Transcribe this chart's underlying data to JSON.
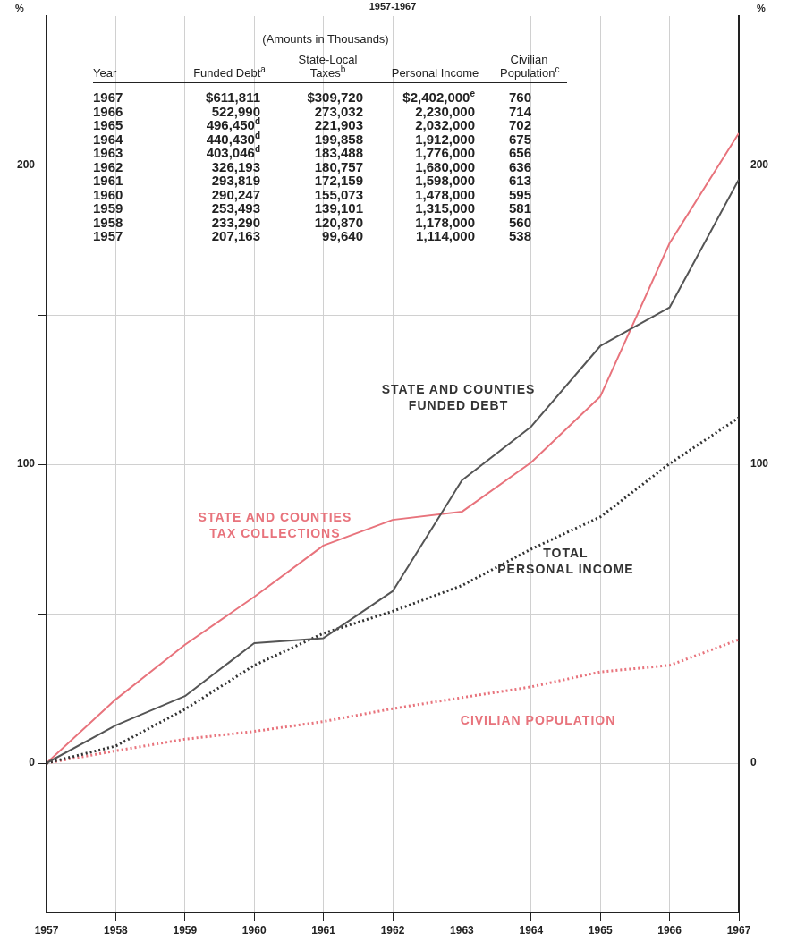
{
  "chart_data": {
    "type": "line",
    "title": "1957-1967",
    "ylabel": "%",
    "y2label": "%",
    "x": [
      1957,
      1958,
      1959,
      1960,
      1961,
      1962,
      1963,
      1964,
      1965,
      1966,
      1967
    ],
    "xlim": [
      1957,
      1967
    ],
    "xticks": [
      1957,
      1958,
      1959,
      1960,
      1961,
      1962,
      1963,
      1964,
      1965,
      1966,
      1967
    ],
    "ylim": [
      -50,
      250
    ],
    "yticks": [
      0,
      {
        "value": 50,
        "label": null
      },
      100,
      {
        "value": 150,
        "label": null
      },
      200
    ],
    "y2lim": [
      -50,
      250
    ],
    "y2ticks": [
      0,
      100,
      200
    ],
    "grid": true,
    "legend": false,
    "marker": "none",
    "series": [
      {
        "name": "STATE AND COUNTIES FUNDED DEBT",
        "color": "#555555",
        "line_style": "solid",
        "values": [
          0,
          12.6,
          22.4,
          40.1,
          41.8,
          57.5,
          94.6,
          112.6,
          139.6,
          152.5,
          195.3
        ]
      },
      {
        "name": "STATE AND COUNTIES TAX COLLECTIONS",
        "color": "#e8737c",
        "line_style": "solid",
        "values": [
          0,
          21.3,
          39.6,
          55.6,
          72.8,
          81.4,
          84.1,
          100.6,
          122.7,
          174,
          210.8
        ]
      },
      {
        "name": "TOTAL PERSONAL INCOME",
        "color": "#333333",
        "line_style": "dotted",
        "values": [
          0,
          5.7,
          18,
          32.7,
          43.4,
          50.8,
          59.4,
          71.6,
          82.4,
          100.2,
          115.6
        ]
      },
      {
        "name": "CIVILIAN POPULATION",
        "color": "#e8737c",
        "line_style": "dotted",
        "values": [
          0,
          4.1,
          8,
          10.6,
          13.9,
          18.2,
          21.9,
          25.5,
          30.5,
          32.7,
          41.3
        ]
      }
    ],
    "annotations": [
      "(Amounts in Thousands)",
      "Year",
      "Funded Debt$^{a}$",
      "State-Local Taxes$^{b}$",
      "Personal Income",
      "Civilian Population$^{c}$",
      "1967",
      "$611,811",
      "$309,720",
      "$2,402,000$^{e}$",
      "760",
      "1966",
      "522,990",
      "273,032",
      "2,230,000",
      "714",
      "1965",
      "496,450$^{d}$",
      "221,903",
      "2,032,000",
      "702",
      "1964",
      "440,430$^{d}$",
      "199,858",
      "1,912,000",
      "675",
      "1963",
      "403,046$^{d}$",
      "183,488",
      "1,776,000",
      "656",
      "1962",
      "326,193",
      "180,757",
      "1,680,000",
      "636",
      "1961",
      "293,819",
      "172,159",
      "1,598,000",
      "613",
      "1960",
      "290,247",
      "155,073",
      "1,478,000",
      "595",
      "1959",
      "253,493",
      "139,101",
      "1,315,000",
      "581",
      "1958",
      "233,290",
      "120,870",
      "1,178,000",
      "560",
      "1957",
      "207,163",
      "99,640",
      "1,114,000",
      "538"
    ]
  }
}
